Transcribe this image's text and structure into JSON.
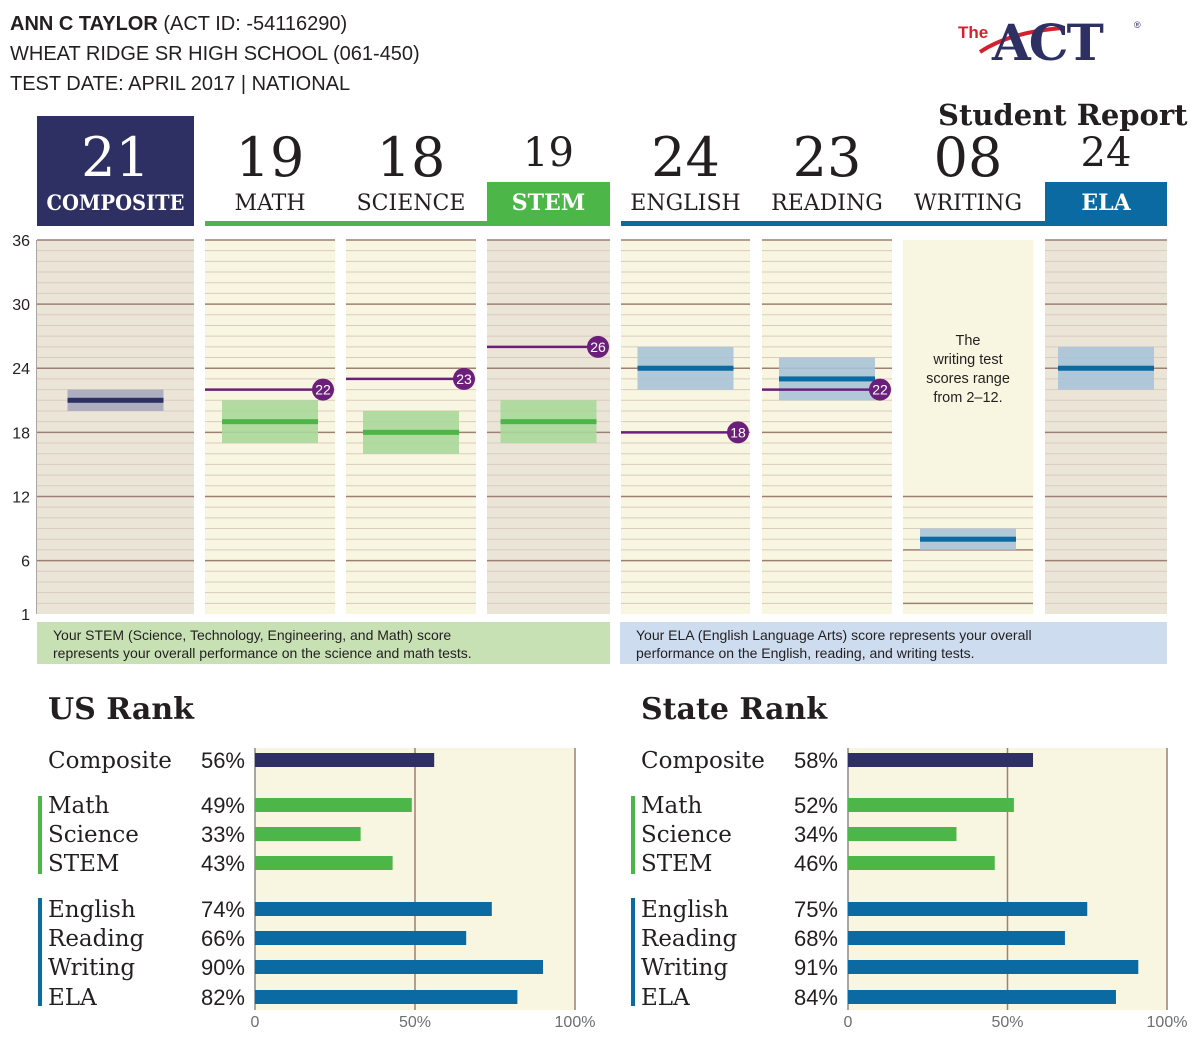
{
  "header": {
    "student_name": "ANN C TAYLOR",
    "act_id": "(ACT ID: -54116290)",
    "school": "WHEAT RIDGE SR HIGH SCHOOL (061-450)",
    "test_date": "TEST DATE:  APRIL 2017 | NATIONAL"
  },
  "logo": {
    "the": "The",
    "act": "ACT",
    "reg": "®"
  },
  "report_title": "Student Report",
  "colors": {
    "composite": "#2e2f62",
    "stem_green": "#4cb648",
    "ela_blue": "#0a6aa1",
    "benchmark_purple": "#6c1f7a",
    "panel_tan": "#ebe5d8",
    "panel_cream": "#f8f6e0",
    "stem_note_bg": "#c7e1b5",
    "ela_note_bg": "#cddcee",
    "rank_bg": "#f8f6e0"
  },
  "chart_data": [
    {
      "type": "bar",
      "y_ticks": [
        1,
        6,
        12,
        18,
        24,
        30,
        36
      ],
      "ylim": [
        1,
        36
      ],
      "series": [
        {
          "name": "COMPOSITE",
          "score": "21",
          "value": 21,
          "range": [
            20,
            22
          ]
        },
        {
          "name": "MATH",
          "score": "19",
          "value": 19,
          "range": [
            17,
            21
          ],
          "benchmark": 22
        },
        {
          "name": "SCIENCE",
          "score": "18",
          "value": 18,
          "range": [
            16,
            20
          ],
          "benchmark": 23
        },
        {
          "name": "STEM",
          "score": "19",
          "value": 19,
          "range": [
            17,
            21
          ],
          "benchmark": 26
        },
        {
          "name": "ENGLISH",
          "score": "24",
          "value": 24,
          "range": [
            22,
            26
          ],
          "benchmark": 18
        },
        {
          "name": "READING",
          "score": "23",
          "value": 23,
          "range": [
            21,
            25
          ],
          "benchmark": 22
        },
        {
          "name": "WRITING",
          "score": "08",
          "value": 8,
          "range": [
            7,
            9
          ]
        },
        {
          "name": "ELA",
          "score": "24",
          "value": 24,
          "range": [
            22,
            26
          ]
        }
      ],
      "annotations": [
        "The",
        "writing test",
        "scores range",
        "from 2–12."
      ],
      "writing_scale": {
        "ticks": [
          2,
          7,
          12
        ],
        "ymax": 12
      },
      "notes": {
        "stem": [
          "Your STEM (Science, Technology, Engineering, and Math) score",
          "represents your overall performance on the science and math tests."
        ],
        "ela": [
          "Your ELA (English Language Arts) score represents your overall",
          "performance on the English, reading, and writing tests."
        ]
      }
    },
    {
      "type": "bar",
      "title": "US Rank",
      "categories": [
        "Composite",
        "Math",
        "Science",
        "STEM",
        "English",
        "Reading",
        "Writing",
        "ELA"
      ],
      "values": [
        56,
        49,
        33,
        43,
        74,
        66,
        90,
        82
      ],
      "value_labels": [
        "56%",
        "49%",
        "33%",
        "43%",
        "74%",
        "66%",
        "90%",
        "82%"
      ],
      "xlim": [
        0,
        100
      ],
      "x_ticks": [
        "0",
        "50%",
        "100%"
      ]
    },
    {
      "type": "bar",
      "title": "State Rank",
      "categories": [
        "Composite",
        "Math",
        "Science",
        "STEM",
        "English",
        "Reading",
        "Writing",
        "ELA"
      ],
      "values": [
        58,
        52,
        34,
        46,
        75,
        68,
        91,
        84
      ],
      "value_labels": [
        "58%",
        "52%",
        "34%",
        "46%",
        "75%",
        "68%",
        "91%",
        "84%"
      ],
      "xlim": [
        0,
        100
      ],
      "x_ticks": [
        "0",
        "50%",
        "100%"
      ]
    }
  ]
}
